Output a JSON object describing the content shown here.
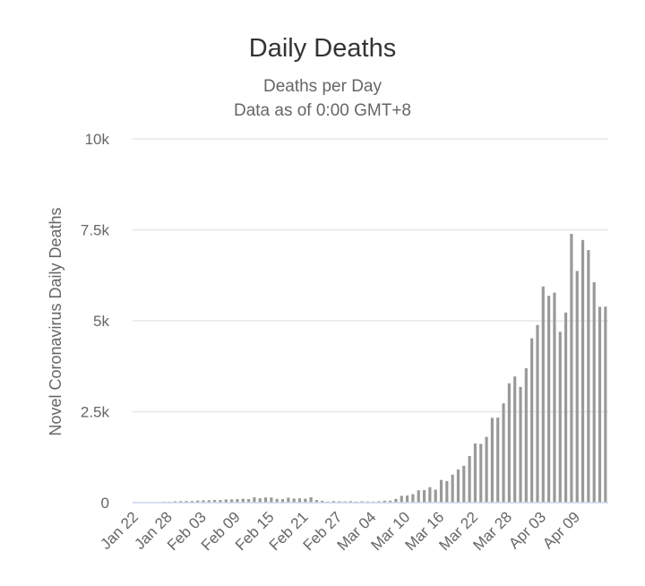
{
  "chart_data": {
    "type": "bar",
    "title": "Daily Deaths",
    "subtitle": [
      "Deaths per Day",
      "Data as of 0:00 GMT+8"
    ],
    "ylabel": "Novel Coronavirus Daily Deaths",
    "xlabel": "",
    "ylim": [
      0,
      10000
    ],
    "yticks": [
      0,
      2500,
      5000,
      7500,
      10000
    ],
    "ytick_labels": [
      "0",
      "2.5k",
      "5k",
      "7.5k",
      "10k"
    ],
    "xtick_labels": [
      "Jan 22",
      "Jan 28",
      "Feb 03",
      "Feb 09",
      "Feb 15",
      "Feb 21",
      "Feb 27",
      "Mar 04",
      "Mar 10",
      "Mar 16",
      "Mar 22",
      "Mar 28",
      "Apr 03",
      "Apr 09"
    ],
    "grid": true,
    "legend": "none",
    "colors": {
      "bar": "#999999",
      "grid": "#e6e6e6",
      "axis": "#ccd6eb"
    },
    "series": [
      {
        "values": [
          17,
          1,
          8,
          16,
          14,
          26,
          26,
          38,
          43,
          46,
          45,
          57,
          64,
          66,
          73,
          73,
          86,
          89,
          97,
          108,
          97,
          146,
          121,
          143,
          142,
          105,
          98,
          139,
          112,
          118,
          109,
          150,
          71,
          52,
          29,
          44,
          37,
          35,
          42,
          31,
          38,
          31,
          30,
          39,
          55,
          55,
          104,
          189,
          196,
          234,
          340,
          347,
          426,
          358,
          624,
          595,
          771,
          911,
          1013,
          1282,
          1625,
          1616,
          1807,
          2332,
          2339,
          2730,
          3281,
          3469,
          3181,
          3697,
          4519,
          4883,
          5942,
          5689,
          5773,
          4697,
          5226,
          7389,
          6370,
          7221,
          6943,
          6060,
          5384,
          5391
        ]
      }
    ]
  }
}
